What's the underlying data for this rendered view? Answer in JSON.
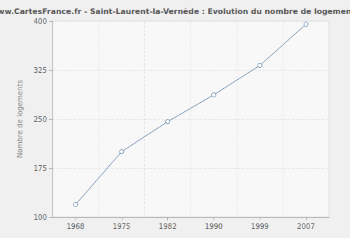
{
  "chart_data": {
    "type": "line",
    "title": "www.CartesFrance.fr - Saint-Laurent-la-Vernède : Evolution du nombre de logements",
    "y_label": "Nombre de logements",
    "categories": [
      "1968",
      "1975",
      "1982",
      "1990",
      "1999",
      "2007"
    ],
    "values": [
      119,
      200,
      246,
      287,
      332,
      395
    ],
    "color": "#5a7fa6",
    "marker": "circle",
    "ylim": [
      100,
      400
    ],
    "yticks": [
      100,
      175,
      250,
      325,
      400
    ],
    "grid": true
  }
}
